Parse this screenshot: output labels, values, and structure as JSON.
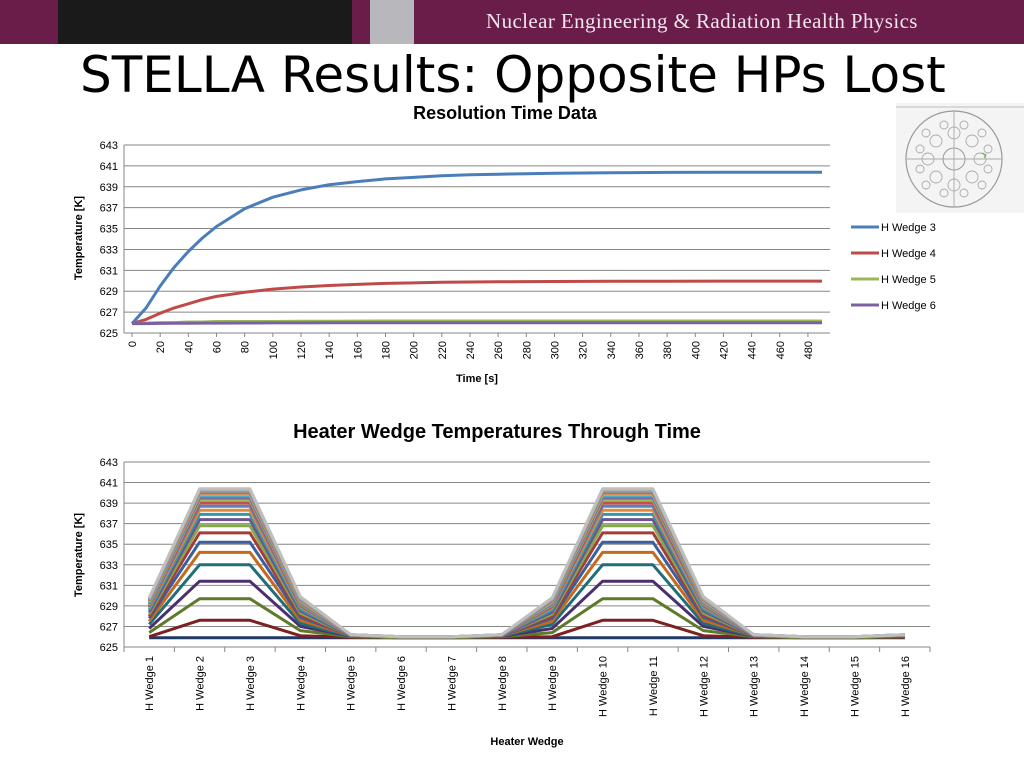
{
  "header": {
    "org_name": "Nuclear Engineering & Radiation Health Physics"
  },
  "slide": {
    "title": "STELLA Results: Opposite HPs Lost"
  },
  "colors": {
    "header_bg": "#6b1d4a",
    "header_black": "#1a1a1a",
    "header_grey": "#b8b8bc",
    "grid": "#868686"
  },
  "thumbnail": {
    "icon": "core-cross-section-diagram-icon"
  },
  "chart_data": [
    {
      "type": "line",
      "title": "Resolution Time Data",
      "xlabel": "Time [s]",
      "ylabel": "Temperature [K]",
      "ylim": [
        625,
        643
      ],
      "yticks": [
        625,
        627,
        629,
        631,
        633,
        635,
        637,
        639,
        641,
        643
      ],
      "xlim": [
        0,
        490
      ],
      "xticks": [
        0,
        20,
        40,
        60,
        80,
        100,
        120,
        140,
        160,
        180,
        200,
        220,
        240,
        260,
        280,
        300,
        320,
        340,
        360,
        380,
        400,
        420,
        440,
        460,
        480
      ],
      "grid": "horizontal",
      "legend_position": "right",
      "x": [
        0,
        10,
        20,
        30,
        40,
        50,
        60,
        80,
        100,
        120,
        140,
        160,
        180,
        200,
        220,
        240,
        260,
        280,
        300,
        340,
        380,
        420,
        460,
        490
      ],
      "series": [
        {
          "name": "H Wedge 3",
          "color": "#4a7ebb",
          "values": [
            625.9,
            627.4,
            629.5,
            631.3,
            632.8,
            634.1,
            635.2,
            636.9,
            638.0,
            638.7,
            639.2,
            639.5,
            639.75,
            639.9,
            640.05,
            640.15,
            640.2,
            640.25,
            640.3,
            640.35,
            640.38,
            640.4,
            640.4,
            640.4
          ]
        },
        {
          "name": "H Wedge 4",
          "color": "#be4b48",
          "values": [
            625.9,
            626.3,
            626.9,
            627.4,
            627.8,
            628.2,
            628.5,
            628.9,
            629.2,
            629.4,
            629.55,
            629.65,
            629.75,
            629.8,
            629.85,
            629.88,
            629.9,
            629.92,
            629.93,
            629.95,
            629.96,
            629.97,
            629.97,
            629.97
          ]
        },
        {
          "name": "H Wedge 5",
          "color": "#98b954",
          "values": [
            625.9,
            625.95,
            626.0,
            626.0,
            626.05,
            626.05,
            626.1,
            626.1,
            626.1,
            626.12,
            626.13,
            626.14,
            626.15,
            626.15,
            626.15,
            626.15,
            626.15,
            626.15,
            626.15,
            626.15,
            626.15,
            626.15,
            626.15,
            626.15
          ]
        },
        {
          "name": "H Wedge 6",
          "color": "#7d60a0",
          "values": [
            625.9,
            625.9,
            625.92,
            625.93,
            625.94,
            625.95,
            625.95,
            625.96,
            625.97,
            625.97,
            625.98,
            625.98,
            625.98,
            625.98,
            625.98,
            625.98,
            625.98,
            625.98,
            625.98,
            625.98,
            625.98,
            625.98,
            625.98,
            625.98
          ]
        }
      ]
    },
    {
      "type": "line",
      "title": "Heater Wedge Temperatures Through Time",
      "xlabel": "Heater Wedge",
      "ylabel": "Temperature [K]",
      "ylim": [
        625,
        643
      ],
      "yticks": [
        625,
        627,
        629,
        631,
        633,
        635,
        637,
        639,
        641,
        643
      ],
      "grid": "horizontal",
      "legend": false,
      "categories": [
        "H Wedge 1",
        "H Wedge 2",
        "H Wedge 3",
        "H Wedge 4",
        "H Wedge 5",
        "H Wedge 6",
        "H Wedge 7",
        "H Wedge 8",
        "H Wedge 9",
        "H Wedge 10",
        "H Wedge 11",
        "H Wedge 12",
        "H Wedge 13",
        "H Wedge 14",
        "H Wedge 15",
        "H Wedge 16"
      ],
      "series": [
        {
          "color": "#1f3864",
          "values": [
            625.9,
            625.9,
            625.9,
            625.9,
            625.9,
            625.9,
            625.9,
            625.9,
            625.9,
            625.9,
            625.9,
            625.9,
            625.9,
            625.9,
            625.9,
            625.9
          ]
        },
        {
          "color": "#7f2020",
          "values": [
            626.0,
            627.6,
            627.6,
            626.1,
            625.95,
            625.9,
            625.9,
            625.95,
            626.0,
            627.6,
            627.6,
            626.1,
            625.95,
            625.9,
            625.9,
            625.95
          ]
        },
        {
          "color": "#5f7a2a",
          "values": [
            626.4,
            629.7,
            629.7,
            626.6,
            626.0,
            625.9,
            625.9,
            626.0,
            626.4,
            629.7,
            629.7,
            626.6,
            626.0,
            625.9,
            625.9,
            626.0
          ]
        },
        {
          "color": "#4b2f6e",
          "values": [
            626.8,
            631.4,
            631.4,
            627.0,
            626.05,
            625.95,
            625.95,
            626.05,
            626.8,
            631.4,
            631.4,
            627.0,
            626.05,
            625.95,
            625.95,
            626.05
          ]
        },
        {
          "color": "#1f6e7a",
          "values": [
            627.2,
            633.0,
            633.0,
            627.3,
            626.05,
            625.95,
            625.95,
            626.05,
            627.2,
            633.0,
            633.0,
            627.3,
            626.05,
            625.95,
            625.95,
            626.05
          ]
        },
        {
          "color": "#c56a1c",
          "values": [
            627.5,
            634.2,
            634.2,
            627.6,
            626.1,
            625.95,
            625.95,
            626.1,
            627.5,
            634.2,
            634.2,
            627.6,
            626.1,
            625.95,
            625.95,
            626.1
          ]
        },
        {
          "color": "#3a5e9e",
          "values": [
            627.8,
            635.2,
            635.2,
            627.9,
            626.1,
            625.95,
            625.95,
            626.1,
            627.8,
            635.2,
            635.2,
            627.9,
            626.1,
            625.95,
            625.95,
            626.1
          ]
        },
        {
          "color": "#a63c3a",
          "values": [
            628.0,
            636.1,
            636.1,
            628.1,
            626.1,
            625.95,
            625.95,
            626.1,
            628.0,
            636.1,
            636.1,
            628.1,
            626.1,
            625.95,
            625.95,
            626.1
          ]
        },
        {
          "color": "#86a84a",
          "values": [
            628.2,
            636.8,
            636.8,
            628.3,
            626.1,
            625.95,
            625.95,
            626.1,
            628.2,
            636.8,
            636.8,
            628.3,
            626.1,
            625.95,
            625.95,
            626.1
          ]
        },
        {
          "color": "#6c558f",
          "values": [
            628.4,
            637.4,
            637.4,
            628.5,
            626.1,
            626.0,
            626.0,
            626.1,
            628.4,
            637.4,
            637.4,
            628.5,
            626.1,
            626.0,
            626.0,
            626.1
          ]
        },
        {
          "color": "#3596a8",
          "values": [
            628.6,
            637.9,
            637.9,
            628.7,
            626.15,
            626.0,
            626.0,
            626.15,
            628.6,
            637.9,
            637.9,
            628.7,
            626.15,
            626.0,
            626.0,
            626.15
          ]
        },
        {
          "color": "#e08a3c",
          "values": [
            628.8,
            638.3,
            638.3,
            628.9,
            626.15,
            626.0,
            626.0,
            626.15,
            628.8,
            638.3,
            638.3,
            628.9,
            626.15,
            626.0,
            626.0,
            626.15
          ]
        },
        {
          "color": "#5b82c0",
          "values": [
            628.9,
            638.7,
            638.7,
            629.0,
            626.15,
            626.0,
            626.0,
            626.15,
            628.9,
            638.7,
            638.7,
            629.0,
            626.15,
            626.0,
            626.0,
            626.15
          ]
        },
        {
          "color": "#c0504d",
          "values": [
            629.0,
            639.0,
            639.0,
            629.1,
            626.15,
            626.0,
            626.0,
            626.15,
            629.0,
            639.0,
            639.0,
            629.1,
            626.15,
            626.0,
            626.0,
            626.15
          ]
        },
        {
          "color": "#9bbb59",
          "values": [
            629.1,
            639.3,
            639.3,
            629.2,
            626.15,
            626.0,
            626.0,
            626.15,
            629.1,
            639.3,
            639.3,
            629.2,
            626.15,
            626.0,
            626.0,
            626.15
          ]
        },
        {
          "color": "#8064a2",
          "values": [
            629.2,
            639.5,
            639.5,
            629.3,
            626.15,
            626.0,
            626.0,
            626.15,
            629.2,
            639.5,
            639.5,
            629.3,
            626.15,
            626.0,
            626.0,
            626.15
          ]
        },
        {
          "color": "#4bacc6",
          "values": [
            629.3,
            639.7,
            639.7,
            629.4,
            626.2,
            626.0,
            626.0,
            626.2,
            629.3,
            639.7,
            639.7,
            629.4,
            626.2,
            626.0,
            626.0,
            626.2
          ]
        },
        {
          "color": "#f79646",
          "values": [
            629.4,
            639.85,
            639.85,
            629.5,
            626.2,
            626.0,
            626.0,
            626.2,
            629.4,
            639.85,
            639.85,
            629.5,
            626.2,
            626.0,
            626.0,
            626.2
          ]
        },
        {
          "color": "#808080",
          "values": [
            629.5,
            640.0,
            640.0,
            629.6,
            626.2,
            626.0,
            626.0,
            626.2,
            629.5,
            640.0,
            640.0,
            629.6,
            626.2,
            626.0,
            626.0,
            626.2
          ]
        },
        {
          "color": "#999999",
          "values": [
            629.6,
            640.15,
            640.15,
            629.7,
            626.2,
            626.0,
            626.0,
            626.2,
            629.6,
            640.15,
            640.15,
            629.7,
            626.2,
            626.0,
            626.0,
            626.2
          ]
        },
        {
          "color": "#a6a6a6",
          "values": [
            629.7,
            640.3,
            640.3,
            629.8,
            626.2,
            626.0,
            626.0,
            626.2,
            629.7,
            640.3,
            640.3,
            629.8,
            626.2,
            626.0,
            626.0,
            626.2
          ]
        },
        {
          "color": "#bfbfbf",
          "values": [
            629.8,
            640.4,
            640.4,
            629.9,
            626.2,
            626.0,
            626.0,
            626.2,
            629.8,
            640.4,
            640.4,
            629.9,
            626.2,
            626.0,
            626.0,
            626.2
          ]
        }
      ]
    }
  ]
}
